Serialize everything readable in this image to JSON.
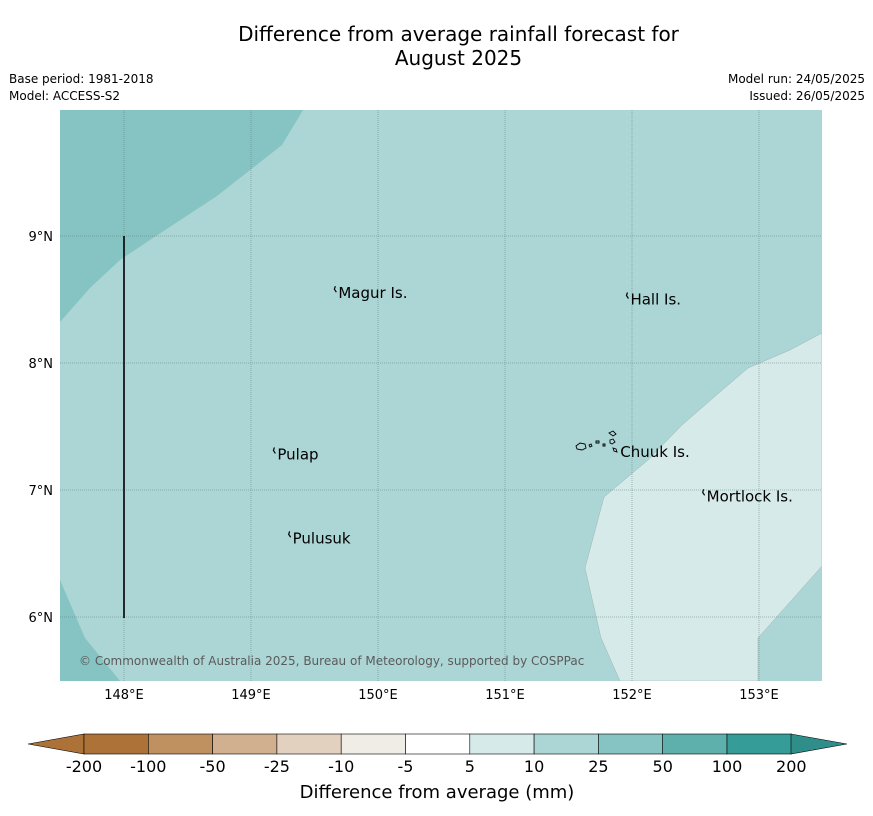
{
  "header": {
    "title_line1": "Difference from average rainfall forecast for",
    "title_line2": "August 2025",
    "base_period": "Base period: 1981-2018",
    "model": "Model: ACCESS-S2",
    "model_run": "Model run: 24/05/2025",
    "issued": "Issued: 26/05/2025"
  },
  "map": {
    "lon_ticks": [
      "148°E",
      "149°E",
      "150°E",
      "151°E",
      "152°E",
      "153°E"
    ],
    "lat_ticks": [
      "9°N",
      "8°N",
      "7°N",
      "6°N"
    ],
    "places": [
      {
        "name": "Magur Is.",
        "lon": 149.68,
        "lat": 8.55
      },
      {
        "name": "Hall Is.",
        "lon": 151.98,
        "lat": 8.5
      },
      {
        "name": "Pulap",
        "lon": 149.2,
        "lat": 7.28
      },
      {
        "name": "Chuuk Is.",
        "lon": 151.9,
        "lat": 7.3
      },
      {
        "name": "Mortlock Is.",
        "lon": 152.58,
        "lat": 6.95
      },
      {
        "name": "Pulusuk",
        "lon": 149.32,
        "lat": 6.62
      }
    ],
    "copyright": "© Commonwealth of Australia 2025, Bureau of Meteorology, supported by COSPPac",
    "colors": {
      "band_10_25": "#acd6d5",
      "band_25_50": "#85c4c2",
      "band_5_10": "#d5eae9"
    }
  },
  "colorbar": {
    "title": "Difference from average (mm)",
    "labels": [
      "-200",
      "-100",
      "-50",
      "-25",
      "-10",
      "-5",
      "5",
      "10",
      "25",
      "50",
      "100",
      "200"
    ],
    "colors": [
      "#ad7238",
      "#bf9161",
      "#d1b08f",
      "#e3d1c0",
      "#f0ede6",
      "#ffffff",
      "#d5eae9",
      "#acd6d5",
      "#85c4c2",
      "#5eb0ad",
      "#359c98"
    ],
    "low_extend_color": "#ad7238",
    "high_extend_color": "#2f8e8a"
  }
}
